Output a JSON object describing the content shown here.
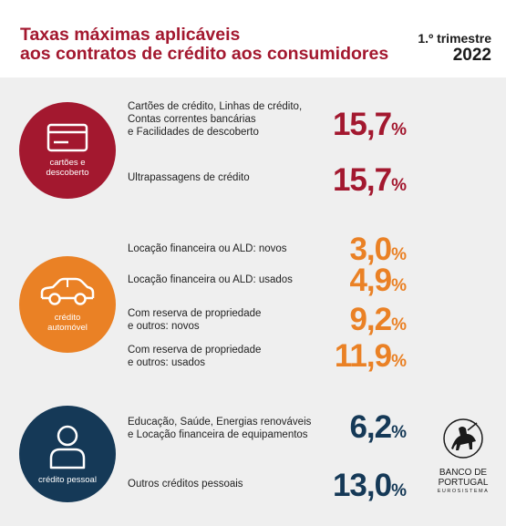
{
  "header": {
    "title_line1": "Taxas máximas aplicáveis",
    "title_line2": "aos contratos de crédito aos consumidores",
    "period": "1.º trimestre",
    "year": "2022"
  },
  "categories": {
    "cards": {
      "label_line1": "cartões e",
      "label_line2": "descoberto",
      "icon": "credit-card-icon",
      "color": "#a3182f"
    },
    "auto": {
      "label_line1": "crédito",
      "label_line2": "automóvel",
      "icon": "car-icon",
      "color": "#ea8125"
    },
    "personal": {
      "label": "crédito pessoal",
      "icon": "person-icon",
      "color": "#153957"
    }
  },
  "rates": {
    "cards_lines": {
      "label_line1": "Cartões de crédito, Linhas de crédito,",
      "label_line2": "Contas correntes bancárias",
      "label_line3": "e Facilidades de descoberto",
      "value": "15,7",
      "pct": "%"
    },
    "overdraft": {
      "label": "Ultrapassagens de crédito",
      "value": "15,7",
      "pct": "%"
    },
    "leasing_new": {
      "label": "Locação financeira ou ALD: novos",
      "value": "3,0",
      "pct": "%"
    },
    "leasing_used": {
      "label": "Locação financeira ou ALD: usados",
      "value": "4,9",
      "pct": "%"
    },
    "reservation_new": {
      "label_line1": "Com reserva de propriedade",
      "label_line2": "e outros: novos",
      "value": "9,2",
      "pct": "%"
    },
    "reservation_used": {
      "label_line1": "Com reserva de propriedade",
      "label_line2": "e outros: usados",
      "value": "11,9",
      "pct": "%"
    },
    "education": {
      "label_line1": "Educação, Saúde, Energias renováveis",
      "label_line2": "e Locação financeira de equipamentos",
      "value": "6,2",
      "pct": "%"
    },
    "other_personal": {
      "label": "Outros créditos pessoais",
      "value": "13,0",
      "pct": "%"
    }
  },
  "logo": {
    "line1": "BANCO DE",
    "line2": "PORTUGAL",
    "line3": "EUROSISTEMA"
  }
}
